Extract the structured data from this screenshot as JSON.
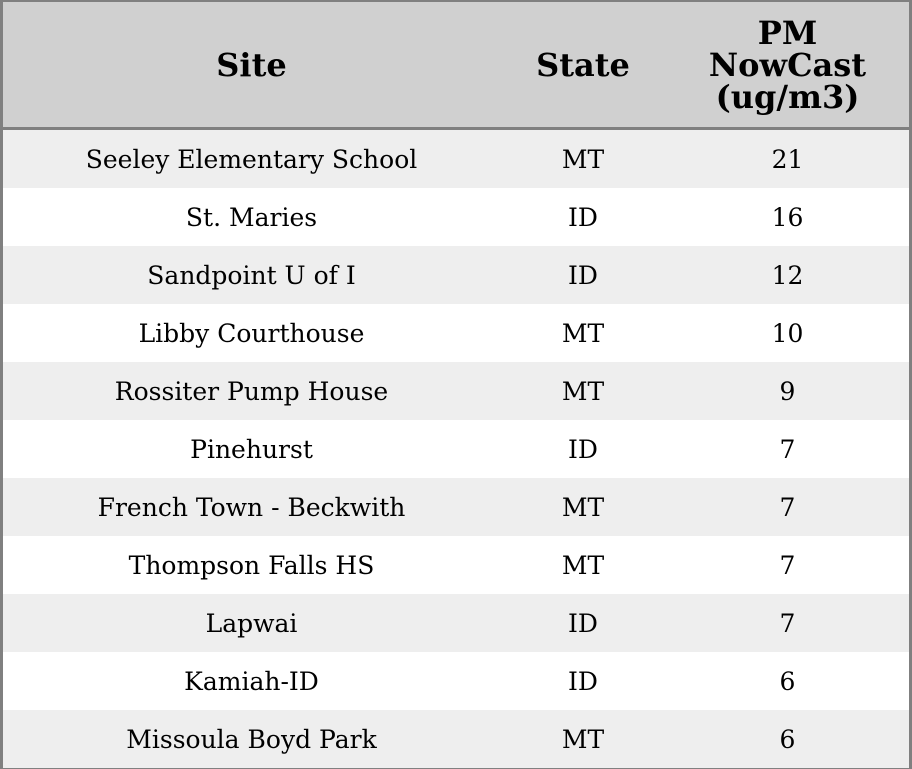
{
  "table": {
    "headers": [
      "Site",
      "State",
      "PM NowCast (ug/m3)"
    ],
    "header_lines": {
      "pm": [
        "PM",
        "NowCast",
        "(ug/m3)"
      ]
    },
    "rows": [
      [
        "Seeley Elementary School",
        "MT",
        "21"
      ],
      [
        "St. Maries",
        "ID",
        "16"
      ],
      [
        "Sandpoint U of I",
        "ID",
        "12"
      ],
      [
        "Libby Courthouse",
        "MT",
        "10"
      ],
      [
        "Rossiter Pump House",
        "MT",
        "9"
      ],
      [
        "Pinehurst",
        "ID",
        "7"
      ],
      [
        "French Town - Beckwith",
        "MT",
        "7"
      ],
      [
        "Thompson Falls HS",
        "MT",
        "7"
      ],
      [
        "Lapwai",
        "ID",
        "7"
      ],
      [
        "Kamiah-ID",
        "ID",
        "6"
      ],
      [
        "Missoula Boyd Park",
        "MT",
        "6"
      ]
    ]
  },
  "colors": {
    "header_bg": "#d0d0d0",
    "row_alt_bg": "#eeeeee",
    "border": "#808080"
  }
}
